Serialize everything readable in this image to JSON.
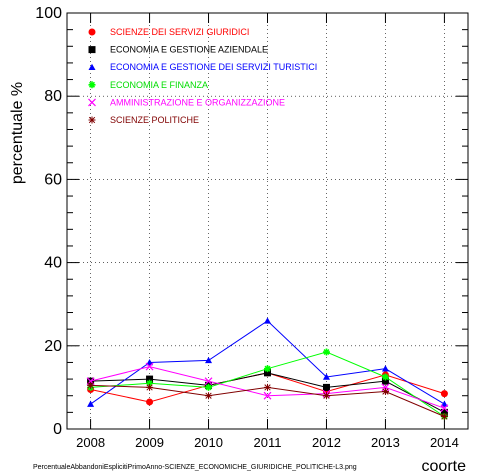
{
  "chart_data": {
    "type": "line",
    "x": [
      2008,
      2009,
      2010,
      2011,
      2012,
      2013,
      2014
    ],
    "ylim": [
      0,
      100
    ],
    "xlim": [
      2007.6,
      2014.4
    ],
    "yticks": [
      0,
      20,
      40,
      60,
      80,
      100
    ],
    "ylabel": "percentuale %",
    "xlabel": "coorte",
    "grid": true,
    "legend": "top-left",
    "series": [
      {
        "name": "SCIENZE DEI SERVIZI GIURIDICI",
        "color": "#ff0000",
        "marker": "circle",
        "values": [
          9.5,
          6.5,
          10.5,
          13.5,
          9,
          13,
          8.5
        ]
      },
      {
        "name": "ECONOMIA E GESTIONE AZIENDALE",
        "color": "#000000",
        "marker": "square",
        "values": [
          11.5,
          12,
          10.5,
          13.5,
          10,
          11.5,
          4
        ]
      },
      {
        "name": "ECONOMIA E GESTIONE DEI SERVIZI TURISTICI",
        "color": "#0000ff",
        "marker": "triangle",
        "values": [
          6,
          16,
          16.5,
          26,
          12.5,
          14.5,
          6
        ]
      },
      {
        "name": "ECONOMIA E FINANZA",
        "color": "#00ff00",
        "marker": "star",
        "values": [
          10,
          11,
          10,
          14.5,
          18.5,
          12.5,
          3
        ]
      },
      {
        "name": "AMMINISTRAZIONE E ORGANIZZAZIONE",
        "color": "#ff00ff",
        "marker": "cross",
        "values": [
          11.5,
          15,
          11.5,
          8,
          8.5,
          10,
          5
        ]
      },
      {
        "name": "SCIENZE POLITICHE",
        "color": "#800000",
        "marker": "asterisk",
        "values": [
          10.5,
          10,
          8,
          10,
          8,
          9,
          3
        ]
      }
    ],
    "footer": "PercentualeAbbandoniEsplicitiPrimoAnno-SCIENZE_ECONOMICHE_GIURIDICHE_POLITICHE-L3.png"
  }
}
